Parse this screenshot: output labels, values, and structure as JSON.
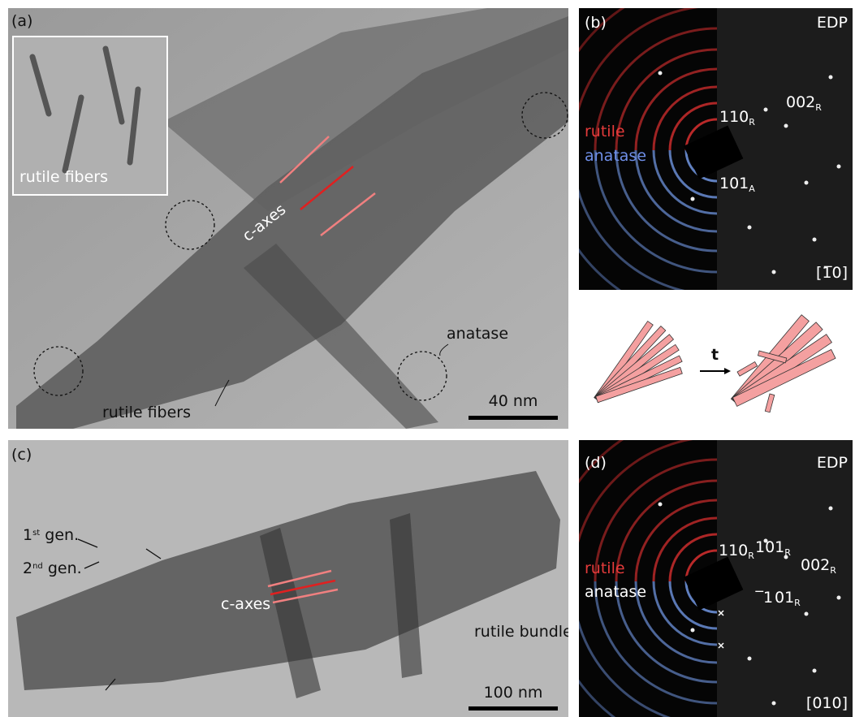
{
  "panel_a": {
    "label": "(a)",
    "inset_label": "rutile fibers",
    "axis_label": "c-axes",
    "anatase_label": "anatase",
    "fibers_label": "rutile fibers",
    "scale_bar": "40 nm"
  },
  "panel_b": {
    "label": "(b)",
    "mode": "EDP",
    "legend": [
      "rutile",
      "anatase"
    ],
    "reflections": [
      {
        "index": "110",
        "phase": "R"
      },
      {
        "index": "002",
        "phase": "R"
      },
      {
        "index": "101",
        "phase": "A"
      }
    ],
    "zone_axis": "[1̅0]"
  },
  "schematic": {
    "arrow_label": "t"
  },
  "panel_c": {
    "label": "(c)",
    "generations": [
      {
        "ordinal": "1",
        "suffix": "st",
        "text": " gen."
      },
      {
        "ordinal": "2",
        "suffix": "nd",
        "text": " gen."
      }
    ],
    "axis_label": "c-axes",
    "bundle_label": "rutile bundle",
    "scale_bar": "100 nm"
  },
  "panel_d": {
    "label": "(d)",
    "mode": "EDP",
    "legend": [
      "rutile",
      "anatase"
    ],
    "reflections": [
      {
        "index": "110",
        "phase": "R"
      },
      {
        "index": "101",
        "phase": "R"
      },
      {
        "index": "002",
        "phase": "R"
      },
      {
        "index": "̅1 01",
        "phase": "R"
      }
    ],
    "zone_axis": "[010]"
  }
}
